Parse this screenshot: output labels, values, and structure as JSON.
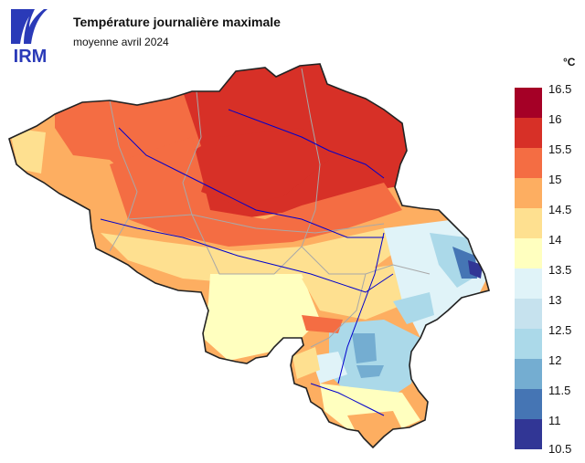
{
  "header": {
    "title": "Température journalière maximale",
    "subtitle": "moyenne avril 2024"
  },
  "logo": {
    "text": "IRM",
    "color": "#2a3ab8"
  },
  "legend": {
    "unit": "°C",
    "labels": [
      "16.5",
      "16",
      "15.5",
      "15",
      "14.5",
      "14",
      "13.5",
      "13",
      "12.5",
      "12",
      "11.5",
      "11",
      "10.5"
    ],
    "colors": [
      "#a50026",
      "#d73027",
      "#f46d43",
      "#fdae61",
      "#fee090",
      "#ffffbf",
      "#e0f3f8",
      "#c6e2ee",
      "#abd9e9",
      "#74add1",
      "#4575b4",
      "#313695"
    ]
  },
  "map": {
    "country_border_color": "#222222",
    "river_color": "#0000cc",
    "province_border_color": "#a8a8a8"
  }
}
